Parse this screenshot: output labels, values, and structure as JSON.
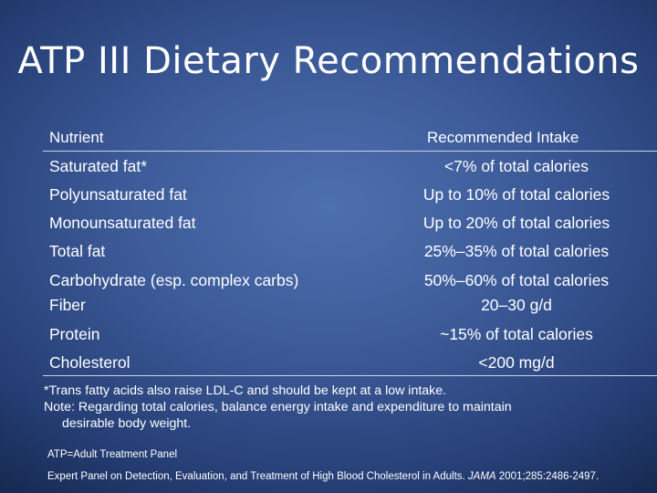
{
  "slide": {
    "title": "ATP III Dietary Recommendations",
    "table": {
      "headers": {
        "nutrient": "Nutrient",
        "intake": "Recommended Intake"
      },
      "rows": [
        {
          "nutrient": "Saturated fat*",
          "intake": "<7% of total calories"
        },
        {
          "nutrient": "Polyunsaturated fat",
          "intake": "Up to 10% of total calories"
        },
        {
          "nutrient": "Monounsaturated fat",
          "intake": "Up to 20% of total calories"
        },
        {
          "nutrient": "Total fat",
          "intake": "25%–35% of total calories"
        },
        {
          "nutrient": "Carbohydrate (esp. complex carbs)",
          "intake": "50%–60% of total calories"
        },
        {
          "nutrient": "Fiber",
          "intake": "20–30 g/d"
        },
        {
          "nutrient": "Protein",
          "intake": "~15% of total calories"
        },
        {
          "nutrient": "Cholesterol",
          "intake": "<200 mg/d"
        }
      ]
    },
    "footnotes": {
      "trans_fat": "*Trans fatty acids also raise LDL-C and should be kept at a low intake.",
      "note_line1": "Note: Regarding total calories, balance energy intake and expenditure to maintain",
      "note_line2": "desirable body weight."
    },
    "abbreviation": "ATP=Adult Treatment Panel",
    "citation": {
      "prefix": "Expert Panel on Detection, Evaluation, and Treatment of High Blood Cholesterol in Adults. ",
      "journal": "JAMA",
      "suffix": " 2001;285:2486-2497."
    }
  }
}
